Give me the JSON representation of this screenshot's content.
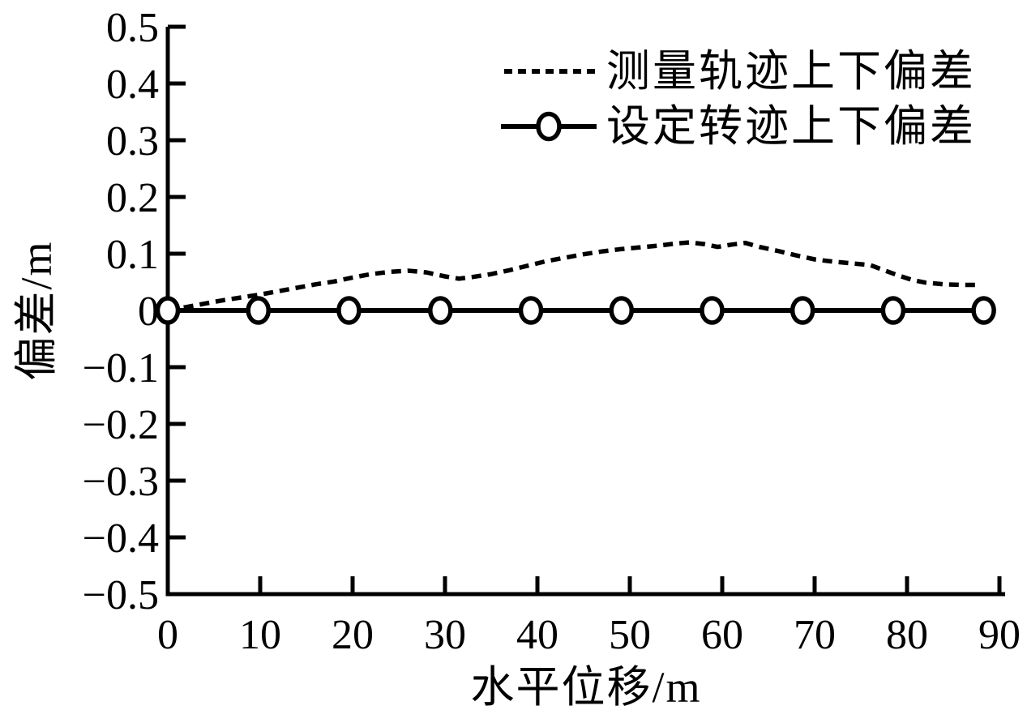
{
  "figure": {
    "background": "#ffffff",
    "line_color": "#000000"
  },
  "chart_data": {
    "type": "line",
    "title": "",
    "xlabel": "水平位移/m",
    "ylabel": "偏差/m",
    "xlim": [
      0,
      90
    ],
    "ylim": [
      -0.5,
      0.5
    ],
    "grid": false,
    "xticks": {
      "values": [
        0,
        10,
        20,
        30,
        40,
        50,
        60,
        70,
        80,
        90
      ],
      "labels": [
        "0",
        "10",
        "20",
        "30",
        "40",
        "50",
        "60",
        "70",
        "80",
        "90"
      ]
    },
    "yticks": {
      "values": [
        0.5,
        0.4,
        0.3,
        0.2,
        0.1,
        0,
        -0.1,
        -0.2,
        -0.3,
        -0.4,
        -0.5
      ],
      "labels": [
        "0.5",
        "0.4",
        "0.3",
        "0.2",
        "0.1",
        "0",
        "−0.1",
        "−0.2",
        "−0.3",
        "−0.4",
        "−0.5"
      ]
    },
    "legend": {
      "position": "upper-right-inside",
      "items": [
        {
          "label": "测量轨迹上下偏差",
          "line": "dotted",
          "marker": "none"
        },
        {
          "label": "设定转迹上下偏差",
          "line": "solid",
          "marker": "circle"
        }
      ]
    },
    "series": [
      {
        "name": "测量轨迹上下偏差",
        "style": "dotted",
        "marker": "none",
        "color": "#000000",
        "points": [
          [
            0,
            0
          ],
          [
            2,
            0.006
          ],
          [
            4,
            0.012
          ],
          [
            6,
            0.018
          ],
          [
            8,
            0.023
          ],
          [
            10,
            0.028
          ],
          [
            12,
            0.034
          ],
          [
            14,
            0.04
          ],
          [
            16,
            0.046
          ],
          [
            18,
            0.051
          ],
          [
            20,
            0.058
          ],
          [
            22,
            0.064
          ],
          [
            24,
            0.068
          ],
          [
            26,
            0.07
          ],
          [
            28,
            0.067
          ],
          [
            30,
            0.06
          ],
          [
            31.5,
            0.056
          ],
          [
            33,
            0.059
          ],
          [
            35,
            0.064
          ],
          [
            37,
            0.071
          ],
          [
            39,
            0.079
          ],
          [
            41,
            0.087
          ],
          [
            43,
            0.093
          ],
          [
            45,
            0.099
          ],
          [
            47,
            0.104
          ],
          [
            49,
            0.108
          ],
          [
            51,
            0.111
          ],
          [
            53,
            0.114
          ],
          [
            55,
            0.118
          ],
          [
            56.5,
            0.12
          ],
          [
            58,
            0.117
          ],
          [
            59.5,
            0.112
          ],
          [
            61,
            0.116
          ],
          [
            62.5,
            0.119
          ],
          [
            64,
            0.112
          ],
          [
            66,
            0.105
          ],
          [
            68,
            0.097
          ],
          [
            70,
            0.09
          ],
          [
            72,
            0.086
          ],
          [
            74,
            0.083
          ],
          [
            76,
            0.08
          ],
          [
            77.5,
            0.071
          ],
          [
            79,
            0.062
          ],
          [
            80.5,
            0.054
          ],
          [
            82,
            0.049
          ],
          [
            84,
            0.046
          ],
          [
            86,
            0.045
          ],
          [
            88,
            0.045
          ]
        ]
      },
      {
        "name": "设定转迹上下偏差",
        "style": "solid",
        "marker": "circle",
        "color": "#000000",
        "points": [
          [
            0,
            0
          ],
          [
            9.8,
            0
          ],
          [
            19.6,
            0
          ],
          [
            29.5,
            0
          ],
          [
            39.3,
            0
          ],
          [
            49.1,
            0
          ],
          [
            58.9,
            0
          ],
          [
            68.7,
            0
          ],
          [
            78.5,
            0
          ],
          [
            88.3,
            0
          ]
        ]
      }
    ]
  }
}
